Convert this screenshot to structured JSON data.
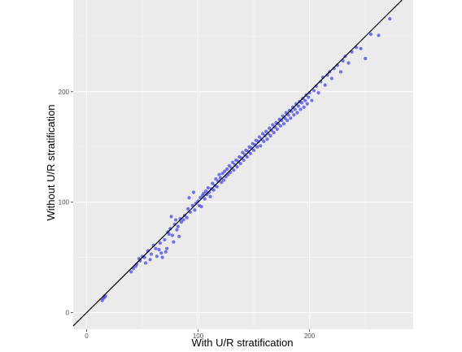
{
  "chart_data": {
    "type": "scatter",
    "xlabel": "With U/R stratification",
    "ylabel": "Without U/R stratification",
    "xlim": [
      -12,
      293
    ],
    "ylim": [
      -15,
      283
    ],
    "x_ticks": [
      0,
      100,
      200
    ],
    "y_ticks": [
      0,
      100,
      200
    ],
    "reference_line": {
      "slope": 1,
      "intercept": 0,
      "color": "#000000"
    },
    "grid": true,
    "legend": "none",
    "colors": {
      "panel": "#ebebeb",
      "grid_major": "#ffffff",
      "grid_minor": "#f5f5f5",
      "points": "#4a4ae6"
    },
    "series": [
      {
        "points": [
          [
            14,
            11
          ],
          [
            15,
            13
          ],
          [
            16,
            14
          ],
          [
            17,
            15
          ],
          [
            40,
            37
          ],
          [
            42,
            40
          ],
          [
            44,
            42
          ],
          [
            45,
            44
          ],
          [
            47,
            49
          ],
          [
            48,
            47
          ],
          [
            50,
            51
          ],
          [
            52,
            50
          ],
          [
            53,
            45
          ],
          [
            55,
            56
          ],
          [
            57,
            48
          ],
          [
            58,
            53
          ],
          [
            60,
            61
          ],
          [
            62,
            58
          ],
          [
            63,
            51
          ],
          [
            65,
            57
          ],
          [
            66,
            63
          ],
          [
            67,
            54
          ],
          [
            68,
            50
          ],
          [
            70,
            66
          ],
          [
            71,
            55
          ],
          [
            72,
            58
          ],
          [
            73,
            73
          ],
          [
            74,
            71
          ],
          [
            75,
            76
          ],
          [
            76,
            87
          ],
          [
            77,
            70
          ],
          [
            78,
            64
          ],
          [
            79,
            80
          ],
          [
            80,
            84
          ],
          [
            81,
            75
          ],
          [
            82,
            78
          ],
          [
            83,
            69
          ],
          [
            84,
            85
          ],
          [
            85,
            82
          ],
          [
            87,
            84
          ],
          [
            88,
            88
          ],
          [
            90,
            86
          ],
          [
            91,
            94
          ],
          [
            92,
            104
          ],
          [
            93,
            91
          ],
          [
            95,
            97
          ],
          [
            96,
            109
          ],
          [
            97,
            93
          ],
          [
            98,
            99
          ],
          [
            100,
            101
          ],
          [
            101,
            97
          ],
          [
            102,
            104
          ],
          [
            103,
            96
          ],
          [
            104,
            106
          ],
          [
            105,
            108
          ],
          [
            106,
            103
          ],
          [
            107,
            110
          ],
          [
            108,
            107
          ],
          [
            109,
            113
          ],
          [
            110,
            109
          ],
          [
            111,
            105
          ],
          [
            112,
            112
          ],
          [
            113,
            117
          ],
          [
            114,
            111
          ],
          [
            115,
            115
          ],
          [
            116,
            121
          ],
          [
            117,
            114
          ],
          [
            118,
            119
          ],
          [
            119,
            125
          ],
          [
            120,
            122
          ],
          [
            121,
            118
          ],
          [
            122,
            126
          ],
          [
            123,
            120
          ],
          [
            124,
            128
          ],
          [
            125,
            123
          ],
          [
            126,
            130
          ],
          [
            127,
            125
          ],
          [
            128,
            133
          ],
          [
            129,
            127
          ],
          [
            130,
            131
          ],
          [
            131,
            136
          ],
          [
            132,
            129
          ],
          [
            133,
            134
          ],
          [
            134,
            138
          ],
          [
            135,
            132
          ],
          [
            136,
            137
          ],
          [
            137,
            141
          ],
          [
            138,
            135
          ],
          [
            139,
            140
          ],
          [
            140,
            145
          ],
          [
            141,
            138
          ],
          [
            142,
            143
          ],
          [
            143,
            147
          ],
          [
            144,
            141
          ],
          [
            145,
            146
          ],
          [
            146,
            150
          ],
          [
            147,
            144
          ],
          [
            148,
            149
          ],
          [
            149,
            153
          ],
          [
            150,
            147
          ],
          [
            151,
            152
          ],
          [
            152,
            156
          ],
          [
            153,
            150
          ],
          [
            154,
            155
          ],
          [
            155,
            159
          ],
          [
            156,
            151
          ],
          [
            157,
            157
          ],
          [
            158,
            162
          ],
          [
            159,
            155
          ],
          [
            160,
            160
          ],
          [
            161,
            164
          ],
          [
            162,
            157
          ],
          [
            163,
            162
          ],
          [
            164,
            167
          ],
          [
            165,
            160
          ],
          [
            166,
            165
          ],
          [
            167,
            170
          ],
          [
            168,
            163
          ],
          [
            169,
            168
          ],
          [
            170,
            172
          ],
          [
            171,
            166
          ],
          [
            172,
            171
          ],
          [
            173,
            175
          ],
          [
            174,
            169
          ],
          [
            175,
            174
          ],
          [
            176,
            178
          ],
          [
            177,
            171
          ],
          [
            178,
            176
          ],
          [
            179,
            181
          ],
          [
            180,
            174
          ],
          [
            181,
            179
          ],
          [
            182,
            183
          ],
          [
            183,
            176
          ],
          [
            184,
            182
          ],
          [
            185,
            186
          ],
          [
            186,
            179
          ],
          [
            187,
            184
          ],
          [
            188,
            189
          ],
          [
            189,
            181
          ],
          [
            190,
            187
          ],
          [
            191,
            191
          ],
          [
            192,
            184
          ],
          [
            193,
            190
          ],
          [
            194,
            194
          ],
          [
            195,
            186
          ],
          [
            196,
            192
          ],
          [
            197,
            197
          ],
          [
            198,
            189
          ],
          [
            199,
            195
          ],
          [
            200,
            199
          ],
          [
            202,
            192
          ],
          [
            204,
            201
          ],
          [
            206,
            205
          ],
          [
            208,
            199
          ],
          [
            210,
            209
          ],
          [
            212,
            213
          ],
          [
            214,
            206
          ],
          [
            216,
            215
          ],
          [
            218,
            218
          ],
          [
            220,
            212
          ],
          [
            222,
            221
          ],
          [
            225,
            224
          ],
          [
            228,
            218
          ],
          [
            230,
            228
          ],
          [
            232,
            232
          ],
          [
            235,
            226
          ],
          [
            238,
            236
          ],
          [
            242,
            240
          ],
          [
            246,
            239
          ],
          [
            250,
            230
          ],
          [
            255,
            252
          ],
          [
            262,
            251
          ],
          [
            272,
            266
          ]
        ]
      }
    ]
  }
}
